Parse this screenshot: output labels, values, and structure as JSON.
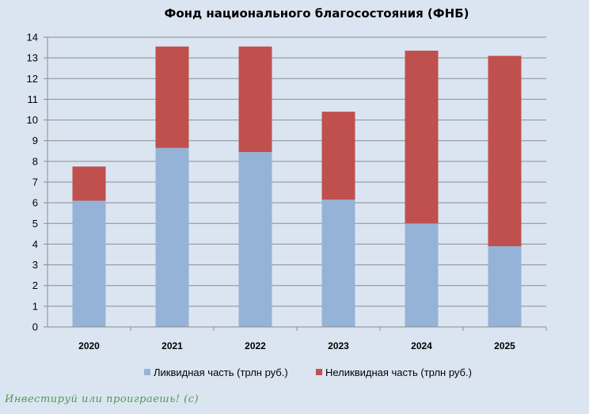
{
  "chart_data": {
    "type": "bar",
    "stacked": true,
    "title": "Фонд национального благосостояния (ФНБ)",
    "categories": [
      "2020",
      "2021",
      "2022",
      "2023",
      "2024",
      "2025"
    ],
    "series": [
      {
        "name": "Ликвидная часть (трлн руб.)",
        "color": "#95b3d7",
        "values": [
          6.1,
          8.65,
          8.45,
          6.15,
          5.0,
          3.9
        ]
      },
      {
        "name": "Неликвидная часть (трлн руб.)",
        "color": "#c0504d",
        "values": [
          1.65,
          4.9,
          5.1,
          4.25,
          8.35,
          9.2
        ]
      }
    ],
    "y_ticks": [
      "0",
      "1",
      "2",
      "3",
      "4",
      "5",
      "6",
      "7",
      "8",
      "9",
      "10",
      "11",
      "12",
      "13",
      "14"
    ],
    "ylim": [
      0,
      14
    ],
    "grid": true,
    "legend_position": "bottom"
  },
  "watermark": "Инвестируй или проиграешь! (с)"
}
